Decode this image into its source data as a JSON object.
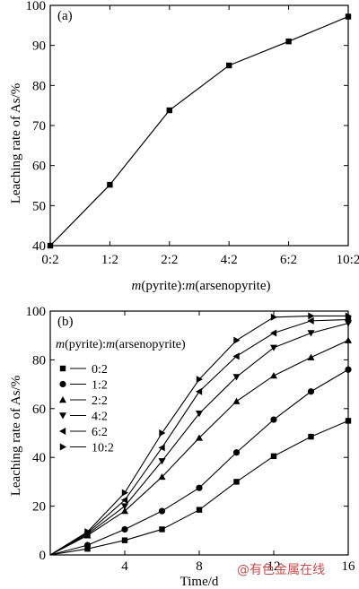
{
  "chart_data": [
    {
      "type": "line",
      "panel_label": "(a)",
      "categories": [
        "0:2",
        "1:2",
        "2:2",
        "4:2",
        "6:2",
        "10:2"
      ],
      "values": [
        40,
        55.2,
        73.8,
        85,
        91,
        97.2
      ],
      "xlabel_parts": [
        "m",
        "(pyrite):",
        "m",
        "(arsenopyrite)"
      ],
      "ylabel": "Leaching rate of As/%",
      "ylim": [
        40,
        100
      ],
      "yticks": [
        40,
        50,
        60,
        70,
        80,
        90,
        100
      ],
      "marker": "square",
      "grid": false
    },
    {
      "type": "line",
      "panel_label": "(b)",
      "x": [
        0,
        2,
        4,
        6,
        8,
        10,
        12,
        14,
        16
      ],
      "series": [
        {
          "name": "0:2",
          "marker": "square",
          "values": [
            0,
            2.5,
            6,
            10.5,
            18.5,
            30,
            40.5,
            48.5,
            55
          ]
        },
        {
          "name": "1:2",
          "marker": "circle",
          "values": [
            0,
            4,
            10.5,
            18,
            27.5,
            42,
            55.5,
            67,
            76
          ]
        },
        {
          "name": "2:2",
          "marker": "triangle-up",
          "values": [
            0,
            8,
            18,
            32,
            48,
            63,
            73.5,
            81,
            88
          ]
        },
        {
          "name": "4:2",
          "marker": "triangle-down",
          "values": [
            0,
            8.5,
            20,
            38.5,
            58,
            73,
            85,
            91,
            95
          ]
        },
        {
          "name": "6:2",
          "marker": "triangle-left",
          "values": [
            0,
            9,
            22.5,
            44,
            67,
            81.5,
            91,
            96,
            96.5
          ]
        },
        {
          "name": "10:2",
          "marker": "triangle-right",
          "values": [
            0,
            9.5,
            25.5,
            50,
            72,
            88,
            97.5,
            98,
            98
          ]
        }
      ],
      "xlabel": "Time/d",
      "ylabel": "Leaching rate of As/%",
      "xlim": [
        0,
        16
      ],
      "ylim": [
        0,
        100
      ],
      "xticks": [
        4,
        8,
        12,
        16
      ],
      "yticks": [
        0,
        20,
        40,
        60,
        80,
        100
      ],
      "legend_title_parts": [
        "m",
        "(pyrite):",
        "m",
        "(arsenopyrite)"
      ],
      "legend_position": "left",
      "grid": false
    }
  ],
  "watermark": "@有色金属在线"
}
